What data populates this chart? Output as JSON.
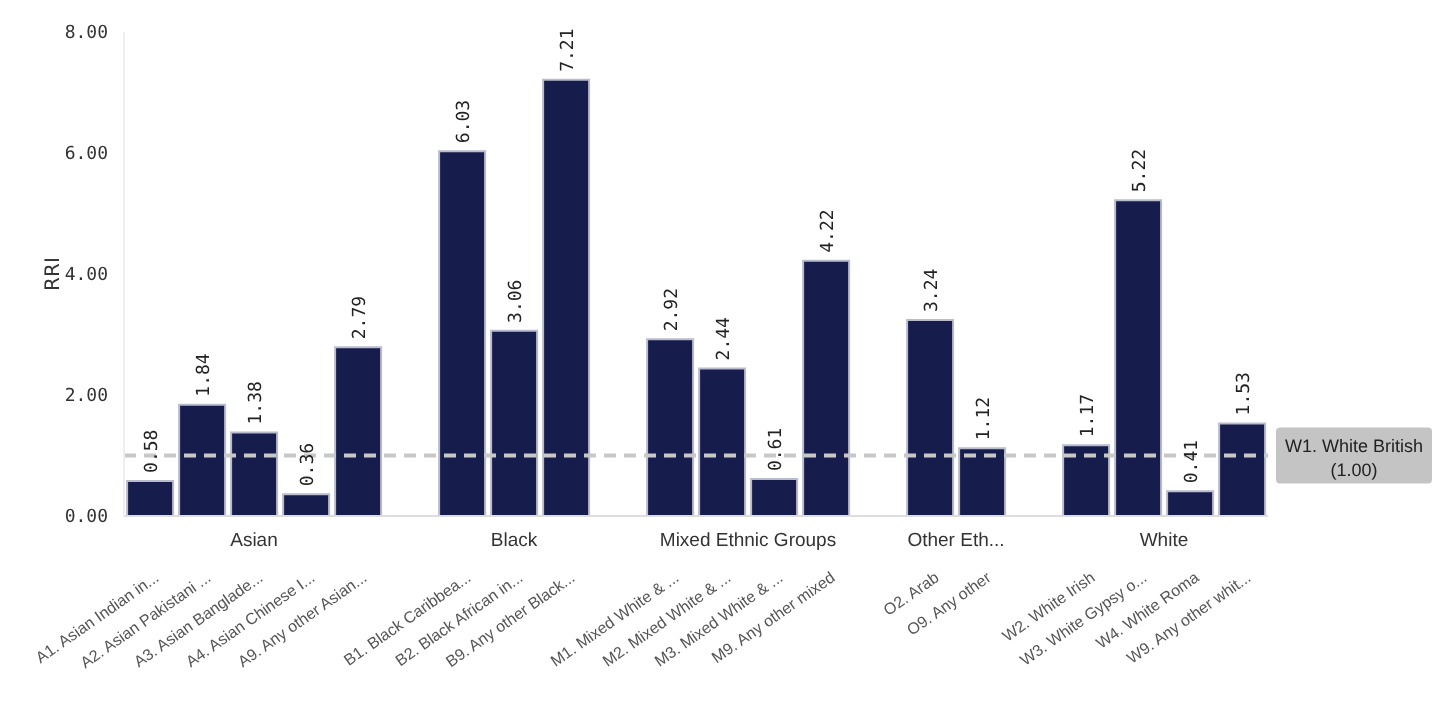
{
  "chart_data": {
    "type": "bar",
    "ylabel": "RRI",
    "categories": [
      "A1. Asian Indian in...",
      "A2. Asian Pakistani ...",
      "A3. Asian Banglade...",
      "A4. Asian Chinese I...",
      "A9. Any other Asian...",
      null,
      "B1. Black Caribbea...",
      "B2. Black African in...",
      "B9. Any other Black...",
      null,
      "M1. Mixed White & ...",
      "M2. Mixed White & ...",
      "M3. Mixed White & ...",
      "M9. Any other mixed",
      null,
      "O2. Arab",
      "O9. Any other",
      null,
      "W2. White Irish",
      "W3. White Gypsy o...",
      "W4. White Roma",
      "W9. Any other whit..."
    ],
    "values": [
      0.58,
      1.84,
      1.38,
      0.36,
      2.79,
      null,
      6.03,
      3.06,
      7.21,
      null,
      2.92,
      2.44,
      0.61,
      4.22,
      null,
      3.24,
      1.12,
      null,
      1.17,
      5.22,
      0.41,
      1.53
    ],
    "color": "#161c4c",
    "data_labels": true,
    "ylim": [
      0,
      8
    ],
    "yticks": [
      {
        "value": 0,
        "label": "0.00"
      },
      {
        "value": 2,
        "label": "2.00"
      },
      {
        "value": 4,
        "label": "4.00"
      },
      {
        "value": 6,
        "label": "6.00"
      },
      {
        "value": 8,
        "label": "8.00"
      }
    ],
    "ref_lines": [
      {
        "axis": "y",
        "value": 1,
        "label": "W1. White British\n(1.00)",
        "color": "#c8c8c8",
        "line_style": "dashed"
      }
    ],
    "annotations": [
      "Asian",
      "Black",
      "Mixed Ethnic Groups",
      "Other Eth...",
      "White"
    ]
  }
}
